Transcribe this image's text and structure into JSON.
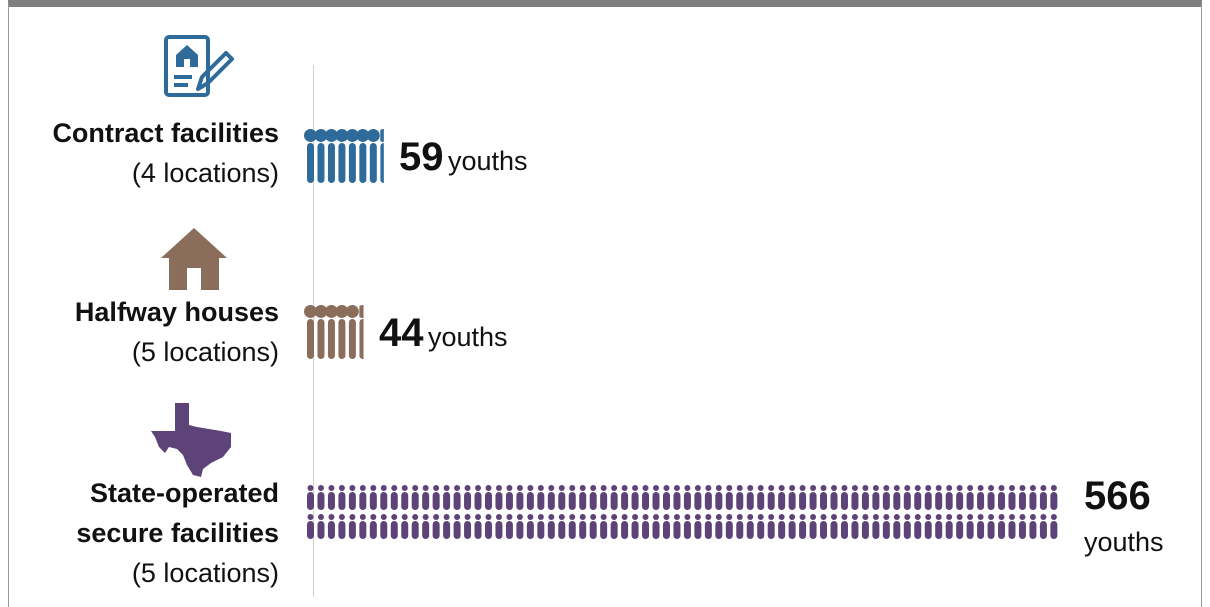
{
  "chart_data": {
    "type": "bar",
    "categories": [
      {
        "name": "Contract facilities",
        "locations": "(4 locations)",
        "icon": "contract-document-icon",
        "color": "#2e6b9a"
      },
      {
        "name": "Halfway houses",
        "locations": "(5 locations)",
        "icon": "house-icon",
        "color": "#8a6d5b"
      },
      {
        "name": "State-operated secure facilities",
        "name_lines": [
          "State-operated",
          "secure facilities"
        ],
        "locations": "(5 locations)",
        "icon": "texas-state-icon",
        "color": "#5e4378"
      }
    ],
    "values": [
      59,
      44,
      566
    ],
    "value_unit": "youths",
    "title": "",
    "xlabel": "",
    "ylabel": "",
    "grid": false
  }
}
